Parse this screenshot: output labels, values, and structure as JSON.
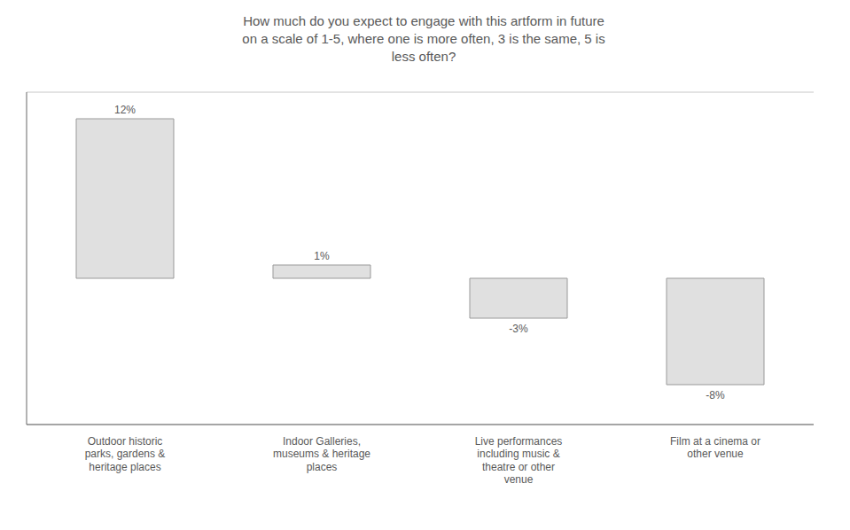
{
  "chart_data": {
    "type": "bar",
    "title": "How much do you expect to engage with this artform in future\non a scale of 1-5, where one is more often, 3 is the same, 5 is\nless often?",
    "categories": [
      "Outdoor historic\nparks, gardens &\nheritage places",
      "Indoor Galleries,\nmuseums & heritage\nplaces",
      "Live performances\nincluding music &\ntheatre or other\nvenue",
      "Film at a cinema or\nother venue"
    ],
    "values": [
      12,
      1,
      -3,
      -8
    ],
    "value_labels": [
      "12%",
      "1%",
      "-3%",
      "-8%"
    ],
    "data_labels": true,
    "color": "#e0e0e0",
    "ylim": [
      -11,
      14
    ],
    "yticks": [
      -10,
      -5,
      0,
      5,
      10
    ],
    "grid": true,
    "tick_labels": "x"
  }
}
